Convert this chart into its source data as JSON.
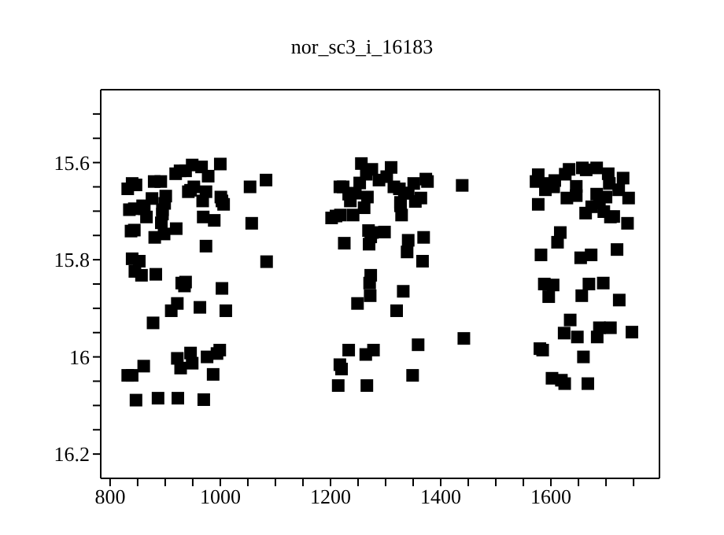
{
  "chart_data": {
    "type": "scatter",
    "title": "nor_sc3_i_16183",
    "marker": "square",
    "xlim": [
      783,
      1797
    ],
    "xticks": [
      800,
      {
        "value": 850,
        "label": null
      },
      {
        "value": 900,
        "label": null
      },
      {
        "value": 950,
        "label": null
      },
      1000,
      {
        "value": 1050,
        "label": null
      },
      {
        "value": 1100,
        "label": null
      },
      {
        "value": 1150,
        "label": null
      },
      1200,
      {
        "value": 1250,
        "label": null
      },
      {
        "value": 1300,
        "label": null
      },
      {
        "value": 1350,
        "label": null
      },
      1400,
      {
        "value": 1450,
        "label": null
      },
      {
        "value": 1500,
        "label": null
      },
      {
        "value": 1550,
        "label": null
      },
      1600,
      {
        "value": 1650,
        "label": null
      },
      {
        "value": 1700,
        "label": null
      },
      {
        "value": 1750,
        "label": null
      }
    ],
    "ylim": [
      16.25,
      15.45
    ],
    "yticks": [
      {
        "value": 15.5,
        "label": null
      },
      {
        "value": 15.55,
        "label": null
      },
      15.6,
      {
        "value": 15.65,
        "label": null
      },
      {
        "value": 15.7,
        "label": null
      },
      {
        "value": 15.75,
        "label": null
      },
      15.8,
      {
        "value": 15.85,
        "label": null
      },
      {
        "value": 15.9,
        "label": null
      },
      {
        "value": 15.95,
        "label": null
      },
      16,
      {
        "value": 16.05,
        "label": null
      },
      {
        "value": 16.1,
        "label": null
      },
      {
        "value": 16.15,
        "label": null
      },
      16.2
    ],
    "series": [
      {
        "color": "#000000",
        "x": [
          832,
          840,
          847,
          835,
          844,
          859,
          862,
          838,
          844,
          866,
          876,
          880,
          892,
          901,
          899,
          895,
          895,
          893,
          898,
          881,
          920,
          919,
          927,
          937,
          949,
          966,
          978,
          952,
          946,
          942,
          968,
          974,
          1001,
          1006,
          1003,
          969,
          989,
          974,
          1054,
          1057,
          1083,
          1084,
          1000,
          840,
          853,
          845,
          857,
          883,
          930,
          935,
          937,
          1003,
          922,
          911,
          963,
          1010,
          878,
          922,
          946,
          928,
          949,
          976,
          987,
          994,
          999,
          861,
          832,
          840,
          847,
          887,
          923,
          970,
          1256,
          1265,
          1275,
          1288,
          1302,
          1310,
          1253,
          1217,
          1223,
          1233,
          1245,
          1236,
          1267,
          1261,
          1241,
          1202,
          1210,
          1218,
          1315,
          1325,
          1334,
          1341,
          1351,
          1373,
          1376,
          1364,
          1354,
          1327,
          1327,
          1329,
          1439,
          1269,
          1276,
          1298,
          1273,
          1270,
          1225,
          1341,
          1369,
          1339,
          1367,
          1273,
          1271,
          1272,
          1249,
          1332,
          1320,
          1442,
          1359,
          1233,
          1264,
          1278,
          1217,
          1220,
          1349,
          1214,
          1266,
          1573,
          1577,
          1592,
          1590,
          1605,
          1607,
          1626,
          1633,
          1657,
          1664,
          1683,
          1704,
          1731,
          1706,
          1723,
          1646,
          1683,
          1700,
          1741,
          1629,
          1646,
          1577,
          1688,
          1674,
          1663,
          1696,
          1708,
          1714,
          1739,
          1617,
          1612,
          1582,
          1654,
          1673,
          1720,
          1588,
          1604,
          1596,
          1656,
          1669,
          1695,
          1724,
          1635,
          1624,
          1648,
          1684,
          1688,
          1708,
          1747,
          1580,
          1585,
          1659,
          1602,
          1619,
          1625,
          1667
        ],
        "values": [
          15.654,
          15.643,
          15.646,
          15.697,
          15.695,
          15.689,
          15.695,
          15.741,
          15.739,
          15.712,
          15.674,
          15.639,
          15.639,
          15.669,
          15.684,
          15.697,
          15.706,
          15.724,
          15.747,
          15.754,
          15.736,
          15.623,
          15.617,
          15.617,
          15.605,
          15.609,
          15.628,
          15.65,
          15.657,
          15.66,
          15.679,
          15.66,
          15.671,
          15.686,
          15.679,
          15.712,
          15.719,
          15.772,
          15.65,
          15.725,
          15.636,
          15.804,
          15.603,
          15.798,
          15.803,
          15.824,
          15.832,
          15.83,
          15.848,
          15.854,
          15.846,
          15.859,
          15.89,
          15.905,
          15.898,
          15.905,
          15.93,
          16.003,
          15.992,
          16.023,
          16.013,
          16,
          16.036,
          15.993,
          15.986,
          16.019,
          16.038,
          16.038,
          16.089,
          16.085,
          16.085,
          16.088,
          15.602,
          15.624,
          15.614,
          15.636,
          15.629,
          15.61,
          15.642,
          15.65,
          15.65,
          15.665,
          15.663,
          15.679,
          15.671,
          15.693,
          15.708,
          15.714,
          15.71,
          15.708,
          15.65,
          15.654,
          15.663,
          15.663,
          15.643,
          15.634,
          15.639,
          15.673,
          15.68,
          15.682,
          15.689,
          15.708,
          15.647,
          15.74,
          15.744,
          15.743,
          15.753,
          15.768,
          15.766,
          15.76,
          15.754,
          15.784,
          15.803,
          15.832,
          15.848,
          15.874,
          15.89,
          15.865,
          15.905,
          15.962,
          15.975,
          15.986,
          15.995,
          15.986,
          16.016,
          16.025,
          16.038,
          16.059,
          16.059,
          15.639,
          15.625,
          15.643,
          15.656,
          15.65,
          15.637,
          15.624,
          15.614,
          15.611,
          15.615,
          15.611,
          15.623,
          15.632,
          15.643,
          15.656,
          15.649,
          15.665,
          15.671,
          15.673,
          15.673,
          15.668,
          15.686,
          15.683,
          15.691,
          15.704,
          15.701,
          15.712,
          15.711,
          15.725,
          15.744,
          15.764,
          15.79,
          15.796,
          15.79,
          15.779,
          15.85,
          15.852,
          15.876,
          15.874,
          15.85,
          15.848,
          15.883,
          15.924,
          15.951,
          15.959,
          15.959,
          15.94,
          15.94,
          15.949,
          15.983,
          15.986,
          16,
          16.044,
          16.048,
          16.055,
          16.055
        ]
      }
    ]
  }
}
